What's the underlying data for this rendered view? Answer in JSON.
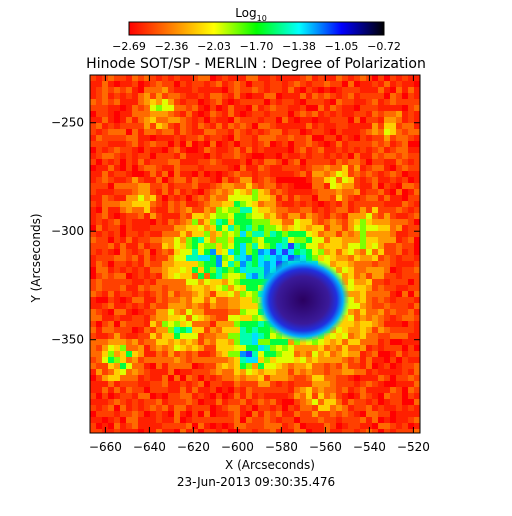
{
  "chart_data": {
    "type": "heatmap",
    "title": "Hinode SOT/SP - MERLIN : Degree of Polarization",
    "colorbar": {
      "label_main": "Log",
      "label_sub": "10",
      "ticks": [
        "−2.69",
        "−2.36",
        "−2.03",
        "−1.70",
        "−1.38",
        "−1.05",
        "−0.72"
      ],
      "range": [
        -2.69,
        -0.72
      ],
      "colormap": [
        "#ff0000",
        "#ff8000",
        "#ffff00",
        "#00ff00",
        "#00ffff",
        "#0000ff",
        "#000000"
      ]
    },
    "xlabel": "X (Arcseconds)",
    "ylabel": "Y (Arcseconds)",
    "xlim": [
      -667,
      -517
    ],
    "ylim": [
      -393,
      -228
    ],
    "xticks": [
      -660,
      -640,
      -620,
      -600,
      -580,
      -560,
      -540,
      -520
    ],
    "xtick_labels": [
      "−660",
      "−640",
      "−620",
      "−600",
      "−580",
      "−560",
      "−540",
      "−520"
    ],
    "yticks": [
      -250,
      -300,
      -350
    ],
    "ytick_labels": [
      "−250",
      "−300",
      "−350"
    ],
    "features": {
      "sunspot_umbra_center": [
        -574,
        -330
      ],
      "penumbra_extent_arcsec": 16
    }
  },
  "footer": {
    "timestamp": "23-Jun-2013 09:30:35.476"
  }
}
